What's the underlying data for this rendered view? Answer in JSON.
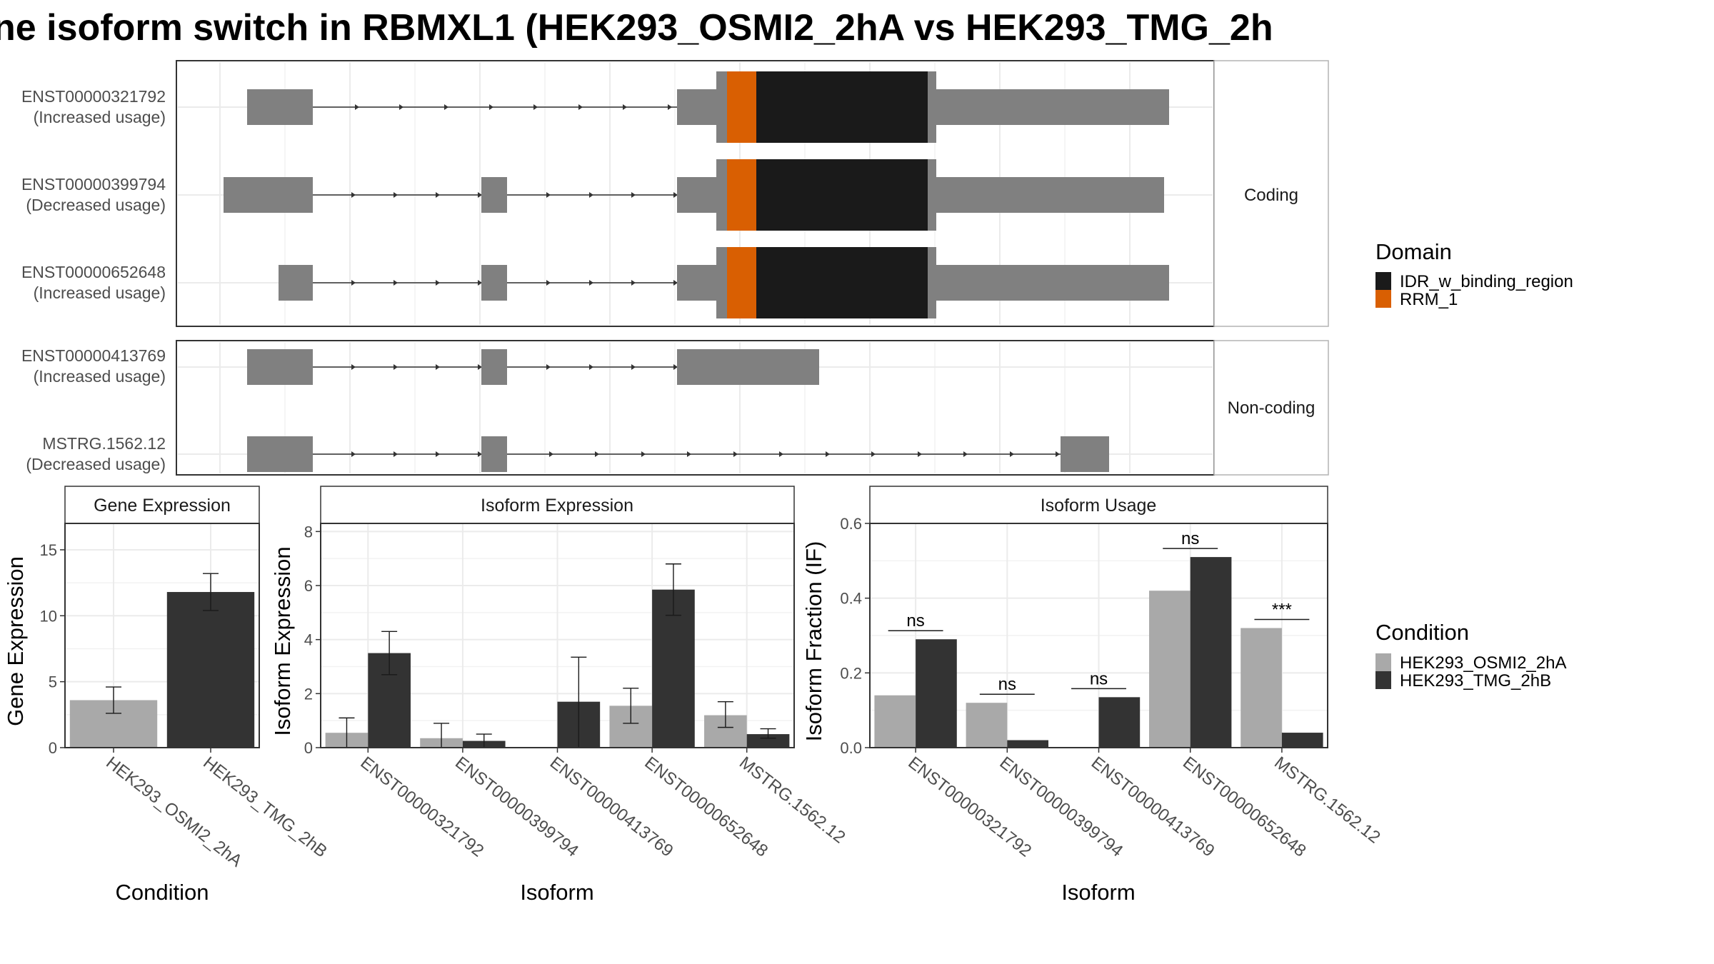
{
  "title": "ne isoform switch in RBMXL1 (HEK293_OSMI2_2hA vs HEK293_TMG_2h",
  "colors": {
    "exon": "#808080",
    "idr": "#1a1a1a",
    "rrm": "#d95f02",
    "cond_a": "#a9a9a9",
    "cond_b": "#333333",
    "strip_bg": "#ffffff",
    "grid": "#ebebeb"
  },
  "structure": {
    "coding_label": "Coding",
    "noncoding_label": "Non-coding",
    "coding_tracks": [
      {
        "id": "ENST00000321792",
        "note": "(Increased usage)"
      },
      {
        "id": "ENST00000399794",
        "note": "(Decreased usage)"
      },
      {
        "id": "ENST00000652648",
        "note": "(Increased usage)"
      }
    ],
    "noncoding_tracks": [
      {
        "id": "ENST00000413769",
        "note": "(Increased usage)"
      },
      {
        "id": "MSTRG.1562.12",
        "note": "(Decreased usage)"
      }
    ]
  },
  "legend_domain": {
    "title": "Domain",
    "items": [
      {
        "label": "IDR_w_binding_region",
        "color": "#1a1a1a"
      },
      {
        "label": "RRM_1",
        "color": "#d95f02"
      }
    ]
  },
  "legend_condition": {
    "title": "Condition",
    "items": [
      {
        "label": "HEK293_OSMI2_2hA",
        "color": "#a9a9a9"
      },
      {
        "label": "HEK293_TMG_2hB",
        "color": "#333333"
      }
    ]
  },
  "chart_data": [
    {
      "type": "bar",
      "panel_title": "Gene Expression",
      "xlabel": "Condition",
      "ylabel": "Gene Expression",
      "ylim": [
        0,
        17
      ],
      "yticks": [
        0,
        5,
        10,
        15
      ],
      "categories": [
        "HEK293_OSMI2_2hA",
        "HEK293_TMG_2hB"
      ],
      "values": [
        3.6,
        11.8
      ],
      "errors": [
        [
          2.6,
          4.6
        ],
        [
          10.4,
          13.2
        ]
      ]
    },
    {
      "type": "bar",
      "panel_title": "Isoform Expression",
      "xlabel": "Isoform",
      "ylabel": "Isoform Expression",
      "ylim": [
        0,
        8.3
      ],
      "yticks": [
        0,
        2,
        4,
        6,
        8
      ],
      "categories": [
        "ENST00000321792",
        "ENST00000399794",
        "ENST00000413769",
        "ENST00000652648",
        "MSTRG.1562.12"
      ],
      "series": [
        {
          "name": "HEK293_OSMI2_2hA",
          "values": [
            0.55,
            0.35,
            0.0,
            1.55,
            1.2
          ],
          "errors": [
            [
              0.0,
              1.1
            ],
            [
              0.0,
              0.9
            ],
            [
              0.0,
              0.0
            ],
            [
              0.9,
              2.2
            ],
            [
              0.75,
              1.7
            ]
          ]
        },
        {
          "name": "HEK293_TMG_2hB",
          "values": [
            3.5,
            0.25,
            1.7,
            5.85,
            0.5
          ],
          "errors": [
            [
              2.7,
              4.3
            ],
            [
              0.0,
              0.5
            ],
            [
              0.0,
              3.35
            ],
            [
              4.9,
              6.8
            ],
            [
              0.35,
              0.7
            ]
          ]
        }
      ]
    },
    {
      "type": "bar",
      "panel_title": "Isoform Usage",
      "xlabel": "Isoform",
      "ylabel": "Isoform Fraction (IF)",
      "ylim": [
        0,
        0.6
      ],
      "yticks": [
        "0.0",
        "0.2",
        "0.4",
        "0.6"
      ],
      "categories": [
        "ENST00000321792",
        "ENST00000399794",
        "ENST00000413769",
        "ENST00000652648",
        "MSTRG.1562.12"
      ],
      "series": [
        {
          "name": "HEK293_OSMI2_2hA",
          "values": [
            0.14,
            0.12,
            0.0,
            0.42,
            0.32
          ]
        },
        {
          "name": "HEK293_TMG_2hB",
          "values": [
            0.29,
            0.02,
            0.135,
            0.51,
            0.04
          ]
        }
      ],
      "significance": [
        "ns",
        "ns",
        "ns",
        "ns",
        "***"
      ]
    }
  ]
}
